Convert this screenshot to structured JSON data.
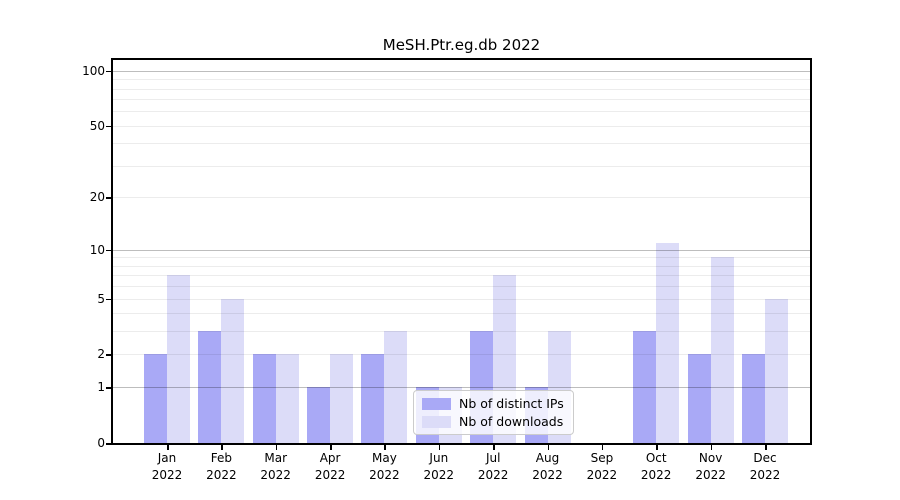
{
  "title": "MeSH.Ptr.eg.db 2022",
  "chart_data": {
    "type": "bar",
    "title": "MeSH.Ptr.eg.db 2022",
    "categories": [
      "Jan 2022",
      "Feb 2022",
      "Mar 2022",
      "Apr 2022",
      "May 2022",
      "Jun 2022",
      "Jul 2022",
      "Aug 2022",
      "Sep 2022",
      "Oct 2022",
      "Nov 2022",
      "Dec 2022"
    ],
    "series": [
      {
        "name": "Nb of distinct IPs",
        "color": "#a9a9f6",
        "values": [
          2,
          3,
          2,
          1,
          2,
          1,
          3,
          1,
          0,
          3,
          2,
          2
        ]
      },
      {
        "name": "Nb of downloads",
        "color": "#dcdcf8",
        "values": [
          7,
          5,
          2,
          2,
          3,
          1,
          7,
          3,
          0,
          11,
          9,
          5
        ]
      }
    ],
    "xlabel": "",
    "ylabel": "",
    "yscale": "log1p",
    "yticks": [
      0,
      1,
      2,
      5,
      10,
      20,
      50,
      100
    ],
    "major_gridlines": [
      1,
      10,
      100
    ],
    "minor_gridlines": [
      2,
      3,
      4,
      5,
      6,
      7,
      8,
      9,
      20,
      30,
      40,
      50,
      60,
      70,
      80,
      90
    ],
    "ylim": [
      0,
      114
    ],
    "grid": "on",
    "legend_position": "inside lower center"
  }
}
